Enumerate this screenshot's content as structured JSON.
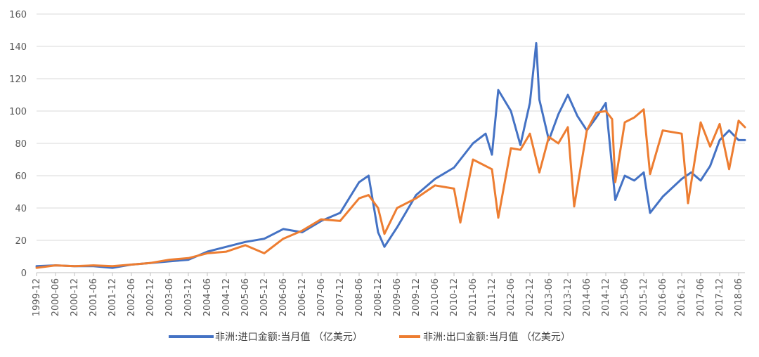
{
  "chart_data": {
    "type": "line",
    "title": "",
    "xlabel": "",
    "ylabel": "",
    "ylim": [
      0,
      160
    ],
    "yticks": [
      0,
      20,
      40,
      60,
      80,
      100,
      120,
      140,
      160
    ],
    "grid": true,
    "legend_position": "bottom",
    "x_tick_labels": [
      "1999-12",
      "2000-06",
      "2000-12",
      "2001-06",
      "2001-12",
      "2002-06",
      "2002-12",
      "2003-06",
      "2003-12",
      "2004-06",
      "2004-12",
      "2005-06",
      "2005-12",
      "2006-06",
      "2006-12",
      "2007-06",
      "2007-12",
      "2008-06",
      "2008-12",
      "2009-06",
      "2009-12",
      "2010-06",
      "2010-12",
      "2011-06",
      "2011-12",
      "2012-06",
      "2012-12",
      "2013-06",
      "2013-12",
      "2014-06",
      "2014-12",
      "2015-06",
      "2015-12",
      "2016-06",
      "2016-12",
      "2017-06",
      "2017-12",
      "2018-06"
    ],
    "x_start": "1999-12",
    "x_end": "2018-08",
    "series": [
      {
        "name": "非洲:进口金额:当月值 （亿美元）",
        "color": "#4472C4",
        "points": [
          [
            "1999-12",
            4
          ],
          [
            "2000-06",
            4.5
          ],
          [
            "2000-12",
            4
          ],
          [
            "2001-06",
            4
          ],
          [
            "2001-12",
            3
          ],
          [
            "2002-06",
            5
          ],
          [
            "2002-12",
            6
          ],
          [
            "2003-06",
            7
          ],
          [
            "2003-12",
            8
          ],
          [
            "2004-06",
            13
          ],
          [
            "2004-12",
            16
          ],
          [
            "2005-06",
            19
          ],
          [
            "2005-12",
            21
          ],
          [
            "2006-06",
            27
          ],
          [
            "2006-12",
            25
          ],
          [
            "2007-06",
            32
          ],
          [
            "2007-12",
            37
          ],
          [
            "2008-06",
            56
          ],
          [
            "2008-09",
            60
          ],
          [
            "2008-12",
            25
          ],
          [
            "2009-02",
            16
          ],
          [
            "2009-06",
            28
          ],
          [
            "2009-12",
            48
          ],
          [
            "2010-06",
            58
          ],
          [
            "2010-12",
            65
          ],
          [
            "2011-06",
            80
          ],
          [
            "2011-10",
            86
          ],
          [
            "2011-12",
            73
          ],
          [
            "2012-02",
            113
          ],
          [
            "2012-06",
            100
          ],
          [
            "2012-09",
            79
          ],
          [
            "2012-12",
            105
          ],
          [
            "2013-02",
            142
          ],
          [
            "2013-03",
            107
          ],
          [
            "2013-06",
            82
          ],
          [
            "2013-09",
            98
          ],
          [
            "2013-12",
            110
          ],
          [
            "2014-03",
            97
          ],
          [
            "2014-06",
            88
          ],
          [
            "2014-09",
            96
          ],
          [
            "2014-12",
            105
          ],
          [
            "2015-03",
            45
          ],
          [
            "2015-06",
            60
          ],
          [
            "2015-09",
            57
          ],
          [
            "2015-12",
            62
          ],
          [
            "2016-02",
            37
          ],
          [
            "2016-06",
            47
          ],
          [
            "2016-12",
            58
          ],
          [
            "2017-03",
            62
          ],
          [
            "2017-06",
            57
          ],
          [
            "2017-09",
            66
          ],
          [
            "2017-12",
            82
          ],
          [
            "2018-03",
            88
          ],
          [
            "2018-06",
            82
          ],
          [
            "2018-08",
            82
          ]
        ]
      },
      {
        "name": "非洲:出口金额:当月值 （亿美元）",
        "color": "#ED7D31",
        "points": [
          [
            "1999-12",
            3
          ],
          [
            "2000-06",
            4.5
          ],
          [
            "2000-12",
            4
          ],
          [
            "2001-06",
            4.5
          ],
          [
            "2001-12",
            4
          ],
          [
            "2002-06",
            5
          ],
          [
            "2002-12",
            6
          ],
          [
            "2003-06",
            8
          ],
          [
            "2003-12",
            9
          ],
          [
            "2004-06",
            12
          ],
          [
            "2004-12",
            13
          ],
          [
            "2005-06",
            17
          ],
          [
            "2005-12",
            12
          ],
          [
            "2006-06",
            21
          ],
          [
            "2006-12",
            26
          ],
          [
            "2007-06",
            33
          ],
          [
            "2007-12",
            32
          ],
          [
            "2008-06",
            46
          ],
          [
            "2008-09",
            48
          ],
          [
            "2008-12",
            40
          ],
          [
            "2009-02",
            24
          ],
          [
            "2009-06",
            40
          ],
          [
            "2009-12",
            46
          ],
          [
            "2010-06",
            54
          ],
          [
            "2010-12",
            52
          ],
          [
            "2011-02",
            31
          ],
          [
            "2011-06",
            70
          ],
          [
            "2011-12",
            64
          ],
          [
            "2012-02",
            34
          ],
          [
            "2012-06",
            77
          ],
          [
            "2012-09",
            76
          ],
          [
            "2012-12",
            86
          ],
          [
            "2013-03",
            62
          ],
          [
            "2013-06",
            84
          ],
          [
            "2013-09",
            80
          ],
          [
            "2013-12",
            90
          ],
          [
            "2014-02",
            41
          ],
          [
            "2014-06",
            88
          ],
          [
            "2014-09",
            99
          ],
          [
            "2014-12",
            100
          ],
          [
            "2015-02",
            95
          ],
          [
            "2015-03",
            56
          ],
          [
            "2015-06",
            93
          ],
          [
            "2015-09",
            96
          ],
          [
            "2015-12",
            101
          ],
          [
            "2016-02",
            61
          ],
          [
            "2016-06",
            88
          ],
          [
            "2016-12",
            86
          ],
          [
            "2017-02",
            43
          ],
          [
            "2017-06",
            93
          ],
          [
            "2017-09",
            78
          ],
          [
            "2017-12",
            92
          ],
          [
            "2018-03",
            64
          ],
          [
            "2018-06",
            94
          ],
          [
            "2018-08",
            90
          ]
        ]
      }
    ]
  }
}
